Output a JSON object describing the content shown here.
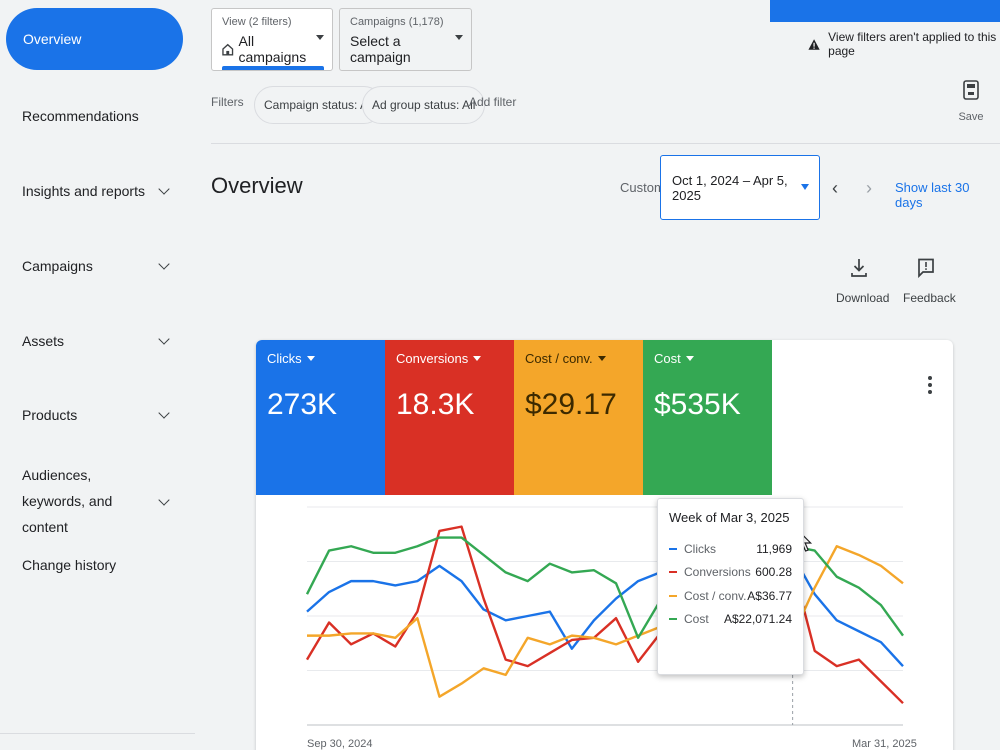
{
  "sidebar": {
    "active": "Overview",
    "items": [
      {
        "label": "Recommendations",
        "chevron": false
      },
      {
        "label": "Insights and reports",
        "chevron": true
      },
      {
        "label": "Campaigns",
        "chevron": true
      },
      {
        "label": "Assets",
        "chevron": true
      },
      {
        "label": "Products",
        "chevron": true
      },
      {
        "label": "Audiences, keywords, and content",
        "chevron": true
      },
      {
        "label": "Change history",
        "chevron": false
      }
    ]
  },
  "view_selector": {
    "small": "View (2 filters)",
    "value": "All campaigns"
  },
  "campaign_selector": {
    "small": "Campaigns (1,178)",
    "value": "Select a campaign"
  },
  "warning": "View filters aren't applied to this page",
  "filters": {
    "label": "Filters",
    "chips": [
      "Campaign status: All",
      "Ad group status: All"
    ],
    "add": "Add filter"
  },
  "save_label": "Save",
  "page_title": "Overview",
  "date": {
    "custom_label": "Custom",
    "range": "Oct 1, 2024 – Apr 5, 2025",
    "prev": "‹",
    "next": "›",
    "show_last": "Show last 30 days"
  },
  "tools": {
    "download": "Download",
    "feedback": "Feedback"
  },
  "metrics": [
    {
      "label": "Clicks",
      "value": "273K",
      "color": "#1a73e8"
    },
    {
      "label": "Conversions",
      "value": "18.3K",
      "color": "#d93025"
    },
    {
      "label": "Cost / conv.",
      "value": "$29.17",
      "color": "#f4a62a"
    },
    {
      "label": "Cost",
      "value": "$535K",
      "color": "#34a853"
    }
  ],
  "tooltip": {
    "title": "Week of Mar 3, 2025",
    "rows": [
      {
        "name": "Clicks",
        "value": "11,969",
        "color": "#1a73e8"
      },
      {
        "name": "Conversions",
        "value": "600.28",
        "color": "#d93025"
      },
      {
        "name": "Cost / conv.",
        "value": "A$36.77",
        "color": "#f4a62a"
      },
      {
        "name": "Cost",
        "value": "A$22,071.24",
        "color": "#34a853"
      }
    ]
  },
  "chart_data": {
    "type": "line",
    "x_start_label": "Sep 30, 2024",
    "x_end_label": "Mar 31, 2025",
    "highlight_index": 22,
    "series": [
      {
        "name": "Clicks",
        "color": "#1a73e8",
        "values": [
          52,
          61,
          66,
          66,
          64,
          66,
          73,
          66,
          53,
          48,
          50,
          52,
          35,
          48,
          58,
          66,
          70,
          73,
          73,
          75,
          74,
          77,
          78,
          60,
          48,
          43,
          38,
          27
        ]
      },
      {
        "name": "Conversions",
        "color": "#d93025",
        "values": [
          30,
          47,
          37,
          42,
          36,
          52,
          89,
          91,
          58,
          30,
          27,
          33,
          39,
          40,
          49,
          29,
          42,
          37,
          43,
          51,
          58,
          71,
          73,
          34,
          27,
          30,
          20,
          10
        ]
      },
      {
        "name": "Cost / conv.",
        "color": "#f4a62a",
        "values": [
          41,
          41,
          42,
          42,
          40,
          49,
          13,
          19,
          26,
          23,
          40,
          37,
          41,
          40,
          37,
          41,
          45,
          45,
          45,
          56,
          56,
          39,
          41,
          63,
          82,
          78,
          73,
          65
        ]
      },
      {
        "name": "Cost",
        "color": "#34a853",
        "values": [
          60,
          80,
          82,
          79,
          79,
          82,
          86,
          86,
          78,
          70,
          66,
          74,
          70,
          71,
          65,
          40,
          57,
          47,
          46,
          75,
          64,
          88,
          82,
          80,
          68,
          63,
          55,
          41
        ]
      }
    ]
  }
}
